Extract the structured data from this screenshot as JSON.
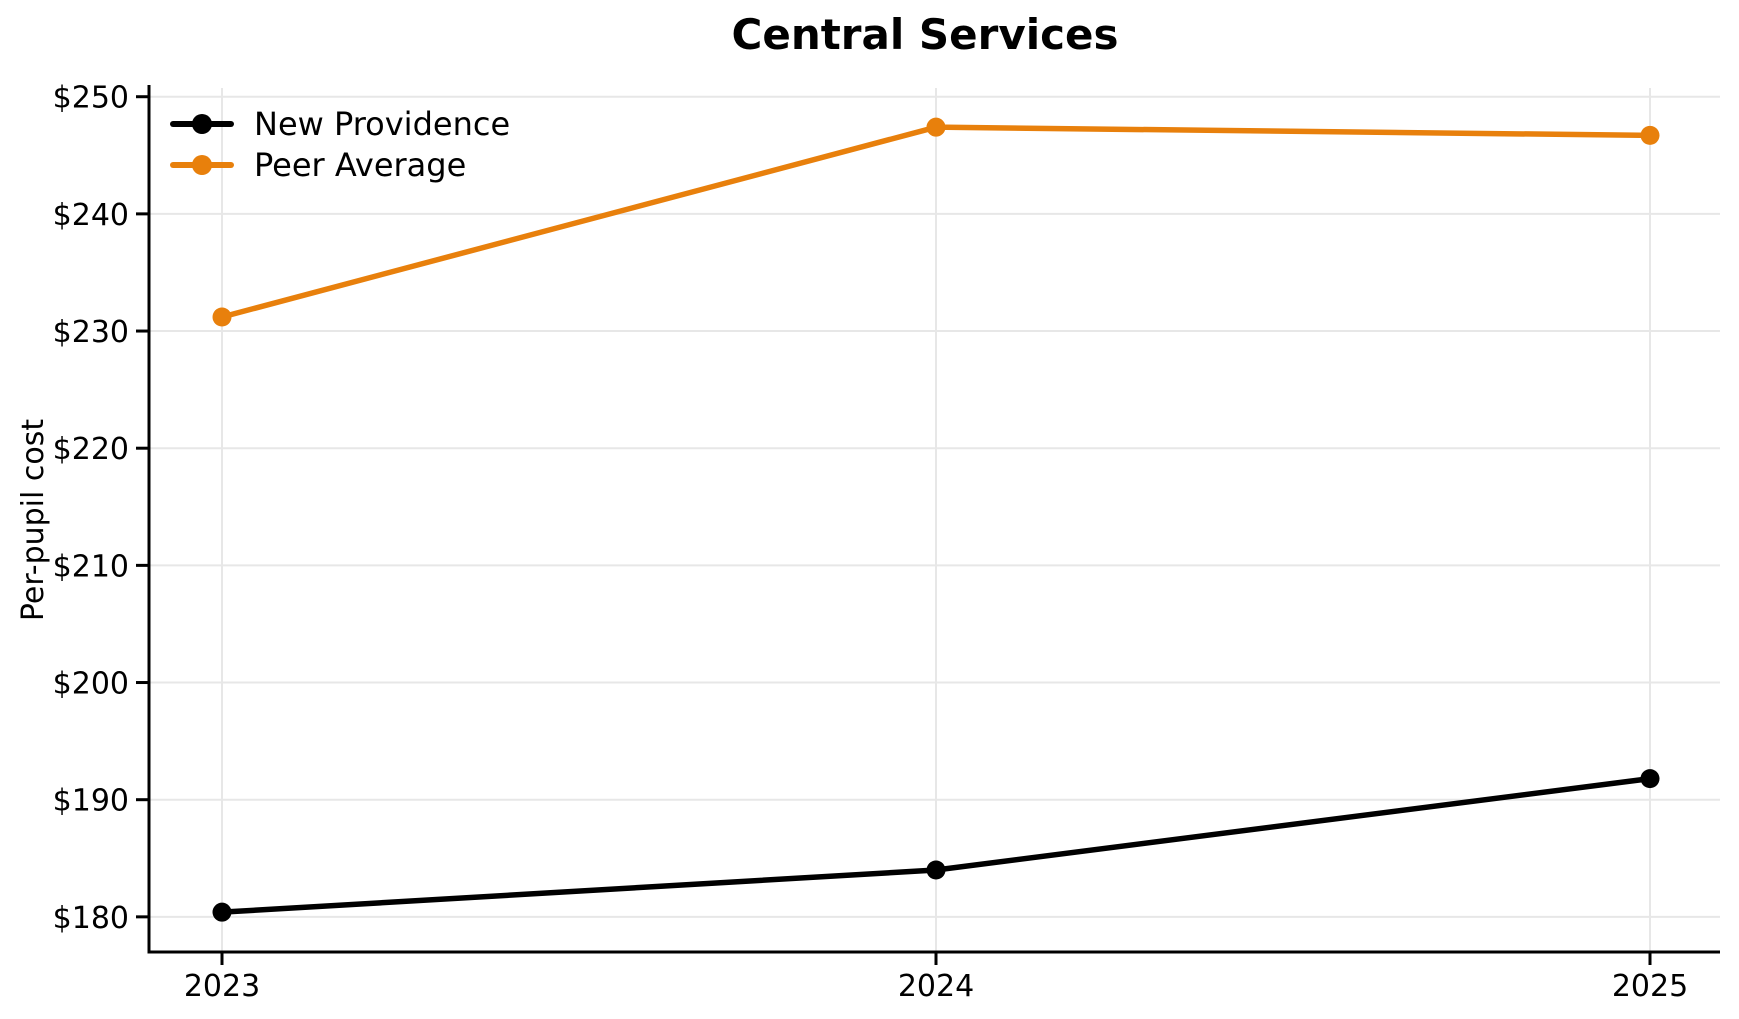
{
  "chart_data": {
    "type": "line",
    "title": "Central Services",
    "xlabel": "",
    "ylabel": "Per-pupil cost",
    "categories": [
      "2023",
      "2024",
      "2025"
    ],
    "series": [
      {
        "name": "New Providence",
        "color": "#000000",
        "values": [
          180.4,
          184.0,
          191.8
        ]
      },
      {
        "name": "Peer Average",
        "color": "#e8800c",
        "values": [
          231.2,
          247.4,
          246.7
        ]
      }
    ],
    "y_ticks": [
      180,
      190,
      200,
      210,
      220,
      230,
      240,
      250
    ],
    "y_tick_labels": [
      "$180",
      "$190",
      "$200",
      "$210",
      "$220",
      "$230",
      "$240",
      "$250"
    ],
    "ylim": [
      177,
      251
    ],
    "grid": true,
    "legend_position": "upper left",
    "grid_color": "#e7e7e7",
    "axis_color": "#000000"
  }
}
